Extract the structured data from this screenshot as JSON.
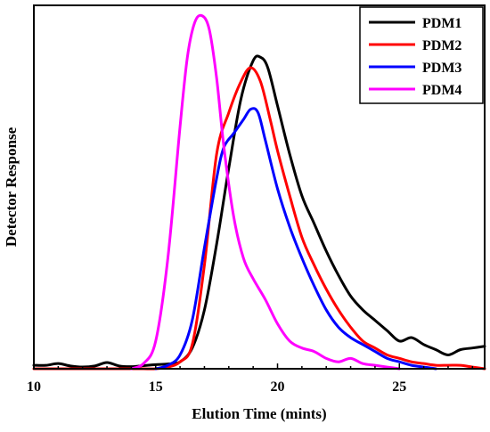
{
  "chart_data": {
    "type": "line",
    "title": "",
    "xlabel": "Elution Time (mints)",
    "ylabel": "Detector Response",
    "xlim": [
      10,
      28.5
    ],
    "ylim": [
      0,
      1.05
    ],
    "xticks": [
      10,
      15,
      20,
      25
    ],
    "grid": false,
    "legend_position": "top-right",
    "series": [
      {
        "name": "PDM1",
        "color": "#000000",
        "x": [
          10.0,
          10.5,
          11.0,
          11.5,
          12.0,
          12.5,
          13.0,
          13.5,
          14.0,
          14.5,
          15.0,
          15.5,
          16.0,
          16.5,
          17.0,
          17.5,
          18.0,
          18.5,
          19.0,
          19.3,
          19.6,
          20.0,
          20.5,
          21.0,
          21.5,
          22.0,
          22.5,
          23.0,
          23.5,
          24.0,
          24.5,
          25.0,
          25.5,
          26.0,
          26.5,
          27.0,
          27.5,
          28.0,
          28.5
        ],
        "y": [
          0.01,
          0.01,
          0.015,
          0.008,
          0.005,
          0.008,
          0.018,
          0.008,
          0.006,
          0.009,
          0.012,
          0.014,
          0.02,
          0.06,
          0.17,
          0.36,
          0.58,
          0.78,
          0.89,
          0.9,
          0.87,
          0.76,
          0.62,
          0.5,
          0.42,
          0.34,
          0.27,
          0.21,
          0.17,
          0.14,
          0.11,
          0.08,
          0.09,
          0.07,
          0.055,
          0.04,
          0.055,
          0.06,
          0.065
        ]
      },
      {
        "name": "PDM2",
        "color": "#ff0000",
        "x": [
          10.0,
          10.5,
          11.0,
          11.5,
          12.0,
          12.5,
          13.0,
          13.5,
          14.0,
          14.5,
          15.0,
          15.5,
          16.0,
          16.5,
          17.0,
          17.5,
          18.0,
          18.5,
          18.9,
          19.3,
          19.7,
          20.0,
          20.5,
          21.0,
          21.5,
          22.0,
          22.5,
          23.0,
          23.5,
          24.0,
          24.5,
          25.0,
          25.5,
          26.0,
          26.5,
          27.0,
          27.5,
          28.0,
          28.5
        ],
        "y": [
          0.0,
          0.0,
          0.0,
          0.0,
          0.0,
          0.0,
          0.0,
          0.0,
          0.0,
          0.0,
          0.0,
          0.005,
          0.02,
          0.07,
          0.3,
          0.62,
          0.74,
          0.83,
          0.87,
          0.83,
          0.72,
          0.63,
          0.5,
          0.38,
          0.3,
          0.23,
          0.17,
          0.12,
          0.08,
          0.06,
          0.04,
          0.03,
          0.02,
          0.015,
          0.01,
          0.01,
          0.01,
          0.005,
          0.0
        ]
      },
      {
        "name": "PDM3",
        "color": "#0000ff",
        "x": [
          15.0,
          15.5,
          16.0,
          16.5,
          17.0,
          17.5,
          17.8,
          18.2,
          18.6,
          18.9,
          19.2,
          19.5,
          20.0,
          20.5,
          21.0,
          21.5,
          22.0,
          22.5,
          23.0,
          23.5,
          24.0,
          24.5,
          25.0,
          25.5,
          26.0,
          26.5
        ],
        "y": [
          0.0,
          0.01,
          0.04,
          0.14,
          0.35,
          0.55,
          0.64,
          0.68,
          0.72,
          0.75,
          0.74,
          0.66,
          0.52,
          0.41,
          0.32,
          0.24,
          0.17,
          0.12,
          0.09,
          0.07,
          0.05,
          0.03,
          0.02,
          0.01,
          0.005,
          0.0
        ]
      },
      {
        "name": "PDM4",
        "color": "#ff00ff",
        "x": [
          14.0,
          14.5,
          15.0,
          15.5,
          16.0,
          16.3,
          16.6,
          16.9,
          17.2,
          17.5,
          17.8,
          18.2,
          18.6,
          19.0,
          19.5,
          20.0,
          20.5,
          21.0,
          21.5,
          22.0,
          22.5,
          23.0,
          23.5,
          24.0,
          24.5,
          25.0
        ],
        "y": [
          0.0,
          0.015,
          0.08,
          0.32,
          0.7,
          0.9,
          1.0,
          1.02,
          0.98,
          0.84,
          0.64,
          0.44,
          0.32,
          0.26,
          0.2,
          0.13,
          0.08,
          0.06,
          0.05,
          0.03,
          0.02,
          0.03,
          0.015,
          0.01,
          0.005,
          0.0
        ]
      }
    ]
  }
}
